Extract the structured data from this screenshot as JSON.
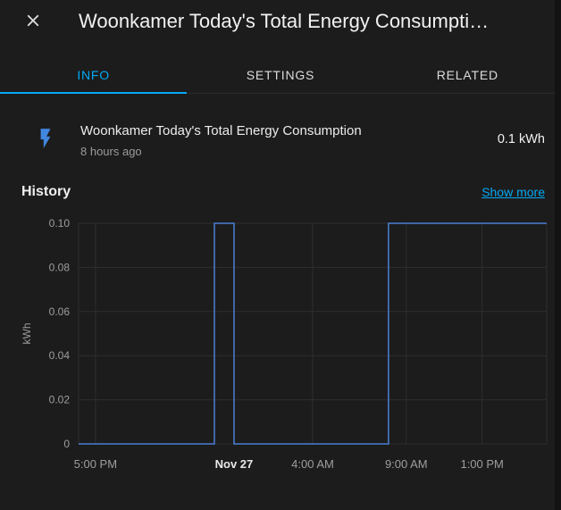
{
  "header": {
    "title": "Woonkamer Today's Total Energy Consumpti…",
    "close_label": "Close"
  },
  "tabs": [
    {
      "label": "INFO",
      "active": true
    },
    {
      "label": "SETTINGS",
      "active": false
    },
    {
      "label": "RELATED",
      "active": false
    }
  ],
  "entity": {
    "name": "Woonkamer Today's Total Energy Consumption",
    "last_changed": "8 hours ago",
    "state": "0.1 kWh",
    "icon": "flash-icon",
    "icon_color": "#4187e0"
  },
  "history": {
    "title": "History",
    "show_more": "Show more"
  },
  "colors": {
    "accent": "#03a9f4",
    "background": "#1c1c1c",
    "primary_text": "#f1f1f1",
    "secondary_text": "#9b9b9b"
  },
  "chart_data": {
    "type": "line",
    "step": true,
    "ylabel": "kWh",
    "ylim": [
      0,
      0.1
    ],
    "grid": true,
    "grid_color": "#2e2e2e",
    "axis_label_color": "#9e9e9e",
    "axis_bold_label_color": "#e8e8e8",
    "yticks": [
      {
        "value": 0,
        "label": "0"
      },
      {
        "value": 0.02,
        "label": "0.02"
      },
      {
        "value": 0.04,
        "label": "0.04"
      },
      {
        "value": 0.06,
        "label": "0.06"
      },
      {
        "value": 0.08,
        "label": "0.08"
      },
      {
        "value": 0.1,
        "label": "0.10"
      }
    ],
    "xticks": [
      {
        "pos": 0.036,
        "label": "5:00 PM",
        "bold": false
      },
      {
        "pos": 0.332,
        "label": "Nov 27",
        "bold": true
      },
      {
        "pos": 0.5,
        "label": "4:00 AM",
        "bold": false
      },
      {
        "pos": 0.7,
        "label": "9:00 AM",
        "bold": false
      },
      {
        "pos": 0.862,
        "label": "1:00 PM",
        "bold": false
      }
    ],
    "series": [
      {
        "name": "Woonkamer Today's Total Energy Consumption",
        "unit": "kWh",
        "color": "#4a7fd4",
        "points": [
          {
            "x": 0.0,
            "y": 0
          },
          {
            "x": 0.29,
            "y": 0
          },
          {
            "x": 0.29,
            "y": 0.1
          },
          {
            "x": 0.332,
            "y": 0.1
          },
          {
            "x": 0.332,
            "y": 0
          },
          {
            "x": 0.662,
            "y": 0
          },
          {
            "x": 0.662,
            "y": 0.1
          },
          {
            "x": 1.0,
            "y": 0.1
          }
        ]
      }
    ]
  }
}
